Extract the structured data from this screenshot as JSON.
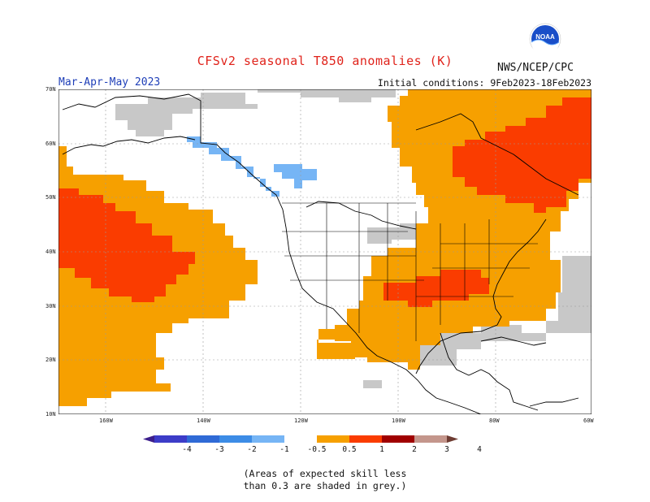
{
  "header": {
    "title": "CFSv2 seasonal T850 anomalies (K)",
    "season": "Mar-Apr-May 2023",
    "initial_conditions": "Initial conditions: 9Feb2023-18Feb2023",
    "agency": "NWS/NCEP/CPC",
    "logo_text": "NOAA"
  },
  "map": {
    "lat_labels": [
      "70N",
      "60N",
      "50N",
      "40N",
      "30N",
      "20N",
      "10N"
    ],
    "lon_labels": [
      "160W",
      "140W",
      "120W",
      "100W",
      "80W",
      "60W"
    ],
    "colors": {
      "grey": "#c8c8c8",
      "light_blue": "#76b5f5",
      "orange": "#f6a000",
      "red_orange": "#fa3c00",
      "land_line": "#000000"
    }
  },
  "legend": {
    "labels": [
      "-4",
      "-3",
      "-2",
      "-1",
      "-0.5",
      "0.5",
      "1",
      "2",
      "3",
      "4"
    ],
    "colors": [
      "#3c1e8c",
      "#3c3cc8",
      "#2f6ad6",
      "#3c8ce6",
      "#76b5f5",
      "#ffffff",
      "#f6a000",
      "#fa3c00",
      "#a00000",
      "#c4968c",
      "#6e3c32"
    ]
  },
  "note": {
    "line1": "(Areas of expected skill less",
    "line2": "than 0.3 are shaded in grey.)"
  }
}
